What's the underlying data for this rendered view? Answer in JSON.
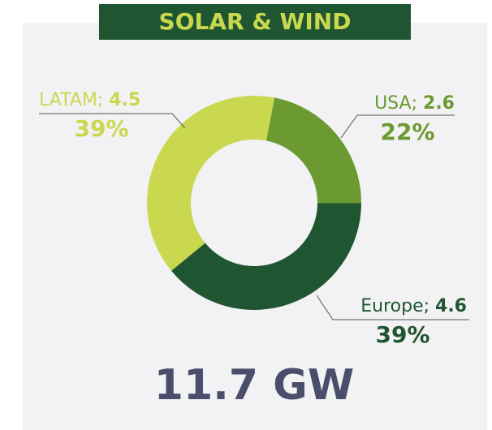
{
  "chart_data": {
    "type": "donut",
    "title": "SOLAR & WIND",
    "categories": [
      "USA",
      "Europe",
      "LATAM"
    ],
    "values": [
      2.6,
      4.6,
      4.5
    ],
    "separator": "; ",
    "shares": [
      22,
      39,
      39
    ],
    "share_labels": [
      "22%",
      "39%",
      "39%"
    ],
    "colors": [
      "#6b9a30",
      "#1f5631",
      "#c9d84f"
    ],
    "total": "11.7 GW"
  }
}
